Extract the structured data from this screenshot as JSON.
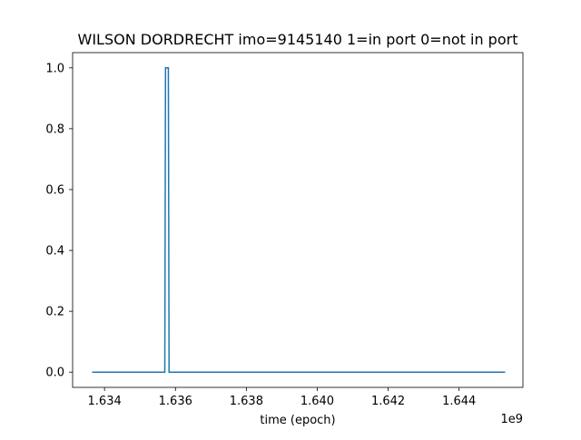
{
  "chart_data": {
    "type": "line",
    "title": "WILSON DORDRECHT imo=9145140 1=in port 0=not in port",
    "xlabel": "time (epoch)",
    "ylabel": "",
    "x_offset_label": "1e9",
    "xlim": [
      1633100000,
      1645800000
    ],
    "ylim": [
      -0.05,
      1.05
    ],
    "x_ticks": [
      1634000000,
      1636000000,
      1638000000,
      1640000000,
      1642000000,
      1644000000
    ],
    "x_tick_labels": [
      "1.634",
      "1.636",
      "1.638",
      "1.640",
      "1.642",
      "1.644"
    ],
    "y_ticks": [
      0.0,
      0.2,
      0.4,
      0.6,
      0.8,
      1.0
    ],
    "y_tick_labels": [
      "0.0",
      "0.2",
      "0.4",
      "0.6",
      "0.8",
      "1.0"
    ],
    "grid": false,
    "series": [
      {
        "color": "#1f77b4",
        "x": [
          1633650000,
          1635700000,
          1635720000,
          1635800000,
          1635820000,
          1645300000
        ],
        "y": [
          0,
          0,
          1,
          1,
          0,
          0
        ]
      }
    ]
  }
}
